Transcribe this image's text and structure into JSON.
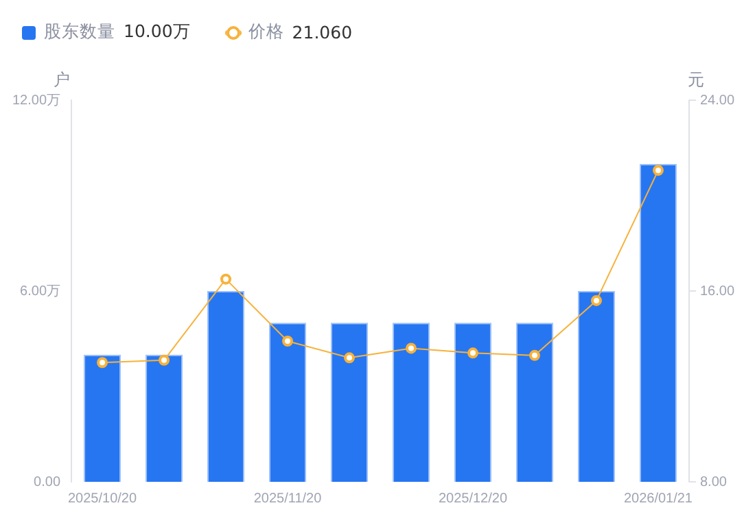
{
  "chart_data": {
    "type": "bar",
    "categories": [
      "2025/10/20",
      null,
      null,
      "2025/11/20",
      null,
      null,
      "2025/12/20",
      null,
      null,
      "2026/01/21"
    ],
    "series": [
      {
        "name": "股东数量",
        "color": "#2776f1",
        "values": [
          4.0,
          4.0,
          6.0,
          5.0,
          5.0,
          5.0,
          5.0,
          5.0,
          6.0,
          10.0
        ]
      },
      {
        "name": "价格",
        "type": "line",
        "axis": "y2",
        "color": "#f7b23b",
        "values": [
          13.0,
          13.1,
          16.5,
          13.9,
          13.2,
          13.6,
          13.4,
          13.3,
          15.6,
          21.06
        ]
      }
    ],
    "ylabel": "户",
    "y2label": "元",
    "ylim": [
      0,
      12
    ],
    "yticks": [
      {
        "value": 0,
        "label": "0.00"
      },
      {
        "value": 6,
        "label": "6.00万"
      },
      {
        "value": 12,
        "label": "12.00万"
      }
    ],
    "y2lim": [
      8,
      24
    ],
    "y2ticks": [
      {
        "value": 8,
        "label": "8.00"
      },
      {
        "value": 16,
        "label": "16.00"
      },
      {
        "value": 24,
        "label": "24.00"
      }
    ],
    "annotations": [
      "10.00万",
      "21.060"
    ],
    "legend": "top left",
    "marker": "circle",
    "line_style": "solid",
    "grid": false
  }
}
